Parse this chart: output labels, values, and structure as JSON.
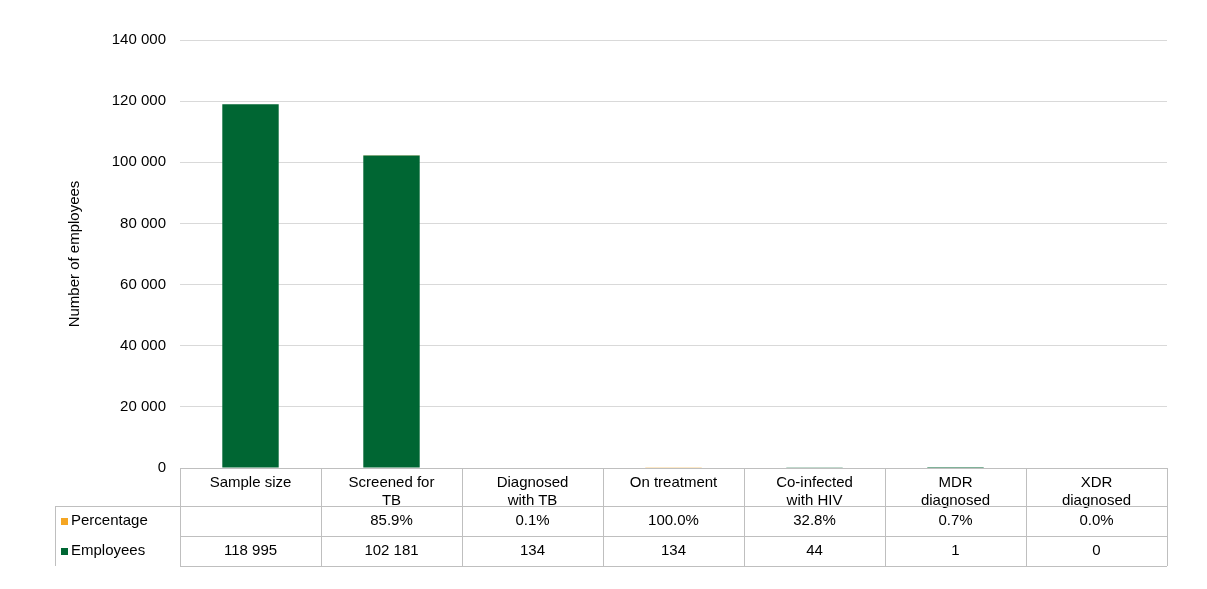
{
  "chart_data": {
    "type": "bar",
    "stacked": true,
    "ylabel": "Number of employees",
    "categories": [
      "Sample size",
      "Screened for TB",
      "Diagnosed with TB",
      "On treatment",
      "Co-infected with HIV",
      "MDR diagnosed",
      "XDR diagnosed"
    ],
    "series": [
      {
        "name": "Employees",
        "color": "#006633",
        "values": [
          118995,
          102181,
          134,
          134,
          44,
          1,
          0
        ],
        "value_labels": [
          "118 995",
          "102 181",
          "134",
          "134",
          "44",
          "1",
          "0"
        ]
      },
      {
        "name": "Percentage",
        "color": "#f5a623",
        "values": [
          null,
          85.9,
          0.1,
          100.0,
          32.8,
          0.7,
          0.0
        ],
        "value_labels": [
          null,
          "85.9%",
          "0.1%",
          "100.0%",
          "32.8%",
          "0.7%",
          "0.0%"
        ]
      }
    ],
    "ylim": [
      0,
      140000
    ],
    "yticks": [
      {
        "value": 0,
        "label": "0"
      },
      {
        "value": 20000,
        "label": "20 000"
      },
      {
        "value": 40000,
        "label": "40 000"
      },
      {
        "value": 60000,
        "label": "60 000"
      },
      {
        "value": 80000,
        "label": "80 000"
      },
      {
        "value": 100000,
        "label": "100 000"
      },
      {
        "value": 120000,
        "label": "120 000"
      },
      {
        "value": 140000,
        "label": "140 000"
      }
    ],
    "grid": "y",
    "legend": "bottom left"
  }
}
